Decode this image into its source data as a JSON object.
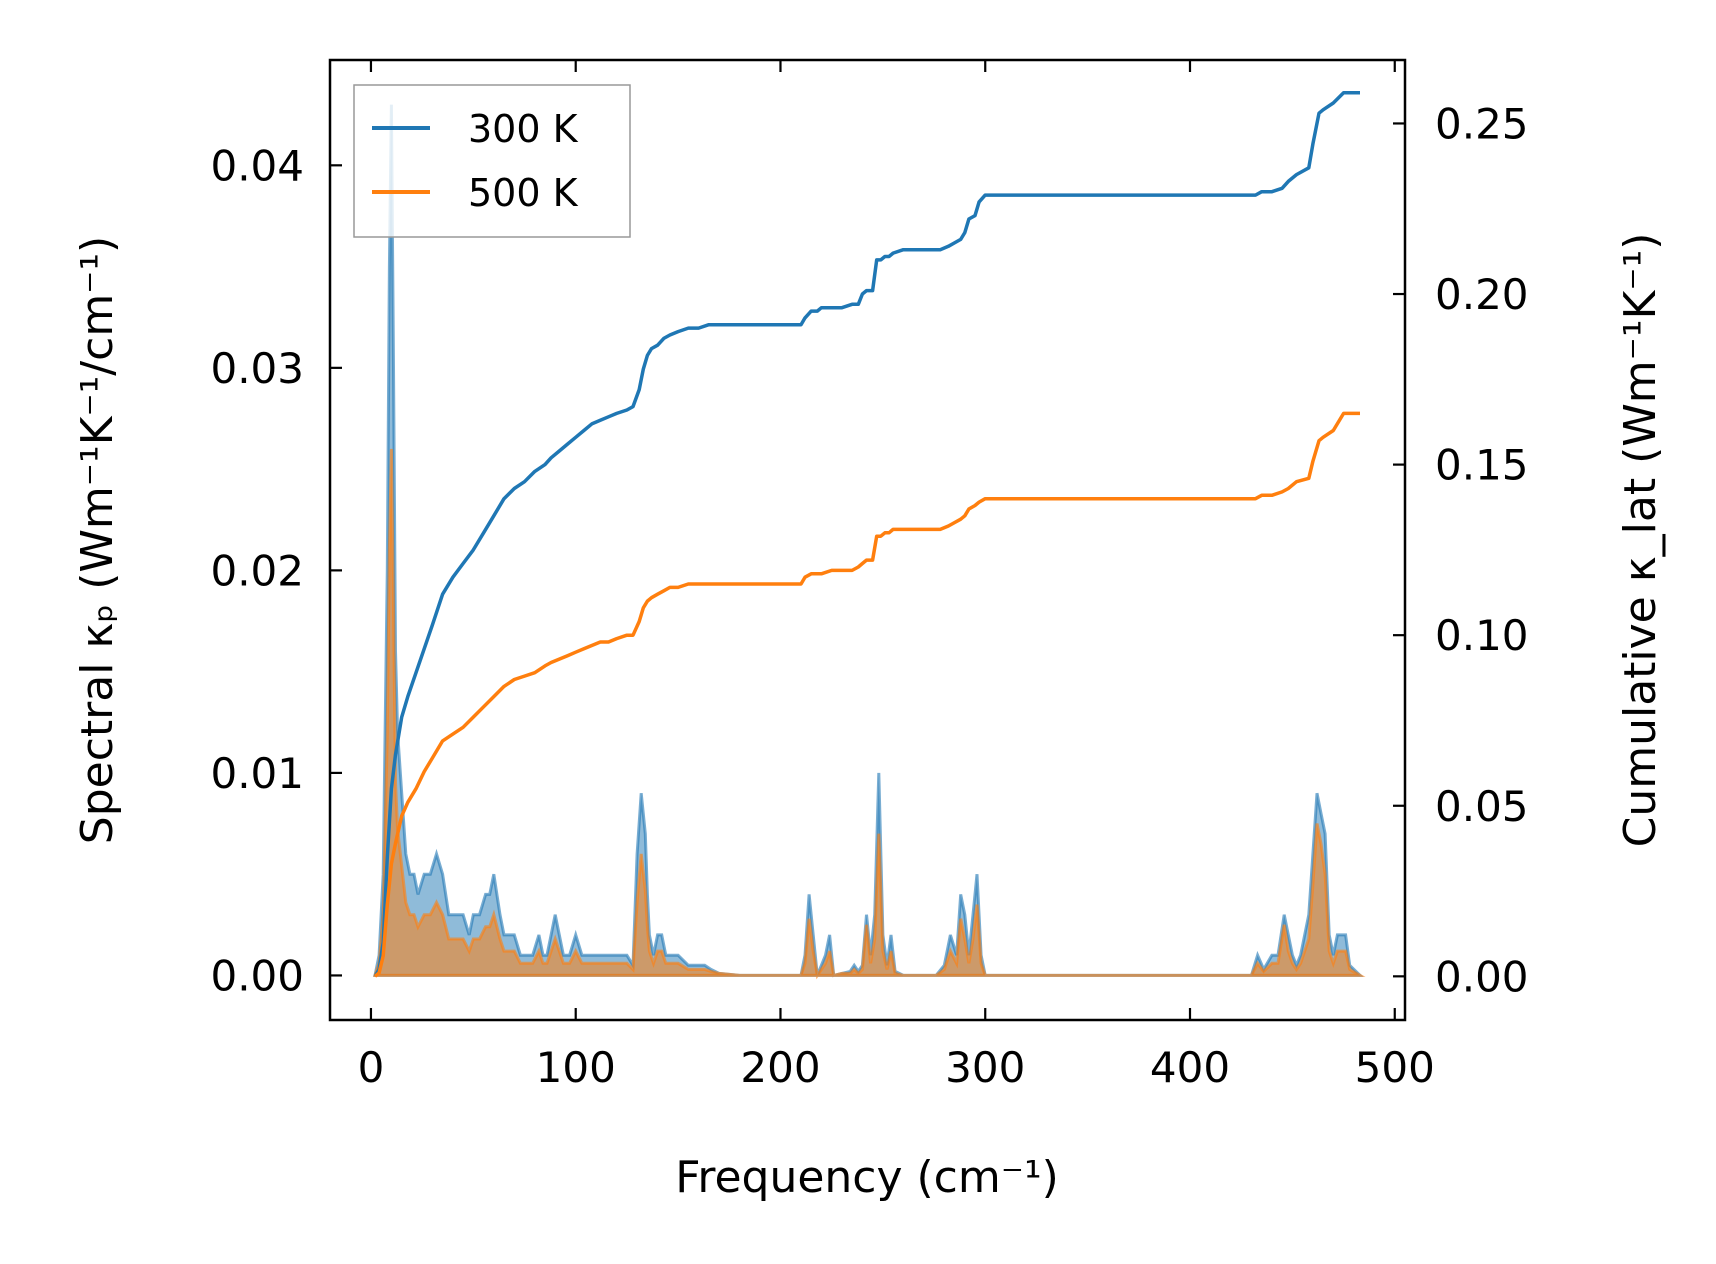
{
  "chart_data": {
    "type": "line",
    "xlabel": "Frequency (cm⁻¹)",
    "ylabel_left": "Spectral κₚ (Wm⁻¹K⁻¹/cm⁻¹)",
    "ylabel_right": "Cumulative κ_lat (Wm⁻¹K⁻¹)",
    "xlim": [
      -20,
      505
    ],
    "ylim_left": [
      -0.0022,
      0.0452
    ],
    "ylim_right": [
      -0.0128,
      0.2686
    ],
    "x_ticks": [
      0,
      100,
      200,
      300,
      400,
      500
    ],
    "x_tick_labels": [
      "0",
      "100",
      "200",
      "300",
      "400",
      "500"
    ],
    "y_left_ticks": [
      0,
      0.01,
      0.02,
      0.03,
      0.04
    ],
    "y_left_tick_labels": [
      "0.00",
      "0.01",
      "0.02",
      "0.03",
      "0.04"
    ],
    "y_right_ticks": [
      0,
      0.05,
      0.1,
      0.15,
      0.2,
      0.25
    ],
    "y_right_tick_labels": [
      "0.00",
      "0.05",
      "0.10",
      "0.15",
      "0.20",
      "0.25"
    ],
    "legend": {
      "position": "top-left",
      "entries": [
        "300 K",
        "500 K"
      ]
    },
    "colors": {
      "300K": "#1f77b4",
      "500K": "#ff7f0e",
      "spectral_300K_fill": "#1f77b4",
      "spectral_500K_fill": "#ff7f0e"
    },
    "series": [
      {
        "name": "300 K",
        "axis": "right",
        "kind": "cumulative",
        "color": "#1f77b4",
        "x": [
          2,
          4,
          6,
          8,
          10,
          12,
          15,
          18,
          22,
          26,
          30,
          35,
          40,
          45,
          50,
          55,
          60,
          65,
          70,
          75,
          80,
          85,
          88,
          92,
          96,
          100,
          104,
          108,
          112,
          116,
          120,
          125,
          128,
          131,
          133,
          135,
          137,
          140,
          143,
          146,
          150,
          155,
          160,
          165,
          170,
          180,
          190,
          200,
          210,
          212,
          215,
          218,
          220,
          225,
          230,
          235,
          238,
          240,
          242,
          245,
          247,
          249,
          251,
          253,
          255,
          260,
          270,
          275,
          278,
          282,
          285,
          288,
          290,
          292,
          295,
          297,
          300,
          310,
          350,
          400,
          432,
          435,
          440,
          445,
          448,
          452,
          458,
          460,
          463,
          465,
          470,
          475,
          483
        ],
        "y": [
          0,
          0.002,
          0.01,
          0.035,
          0.055,
          0.065,
          0.076,
          0.082,
          0.089,
          0.096,
          0.103,
          0.112,
          0.117,
          0.121,
          0.125,
          0.13,
          0.135,
          0.14,
          0.143,
          0.145,
          0.148,
          0.15,
          0.152,
          0.154,
          0.156,
          0.158,
          0.16,
          0.162,
          0.163,
          0.164,
          0.165,
          0.166,
          0.167,
          0.172,
          0.178,
          0.182,
          0.184,
          0.185,
          0.187,
          0.188,
          0.189,
          0.19,
          0.19,
          0.191,
          0.191,
          0.191,
          0.191,
          0.191,
          0.191,
          0.193,
          0.195,
          0.195,
          0.196,
          0.196,
          0.196,
          0.197,
          0.197,
          0.2,
          0.201,
          0.201,
          0.21,
          0.21,
          0.211,
          0.211,
          0.212,
          0.213,
          0.213,
          0.213,
          0.213,
          0.214,
          0.215,
          0.216,
          0.218,
          0.222,
          0.223,
          0.227,
          0.229,
          0.229,
          0.229,
          0.229,
          0.229,
          0.23,
          0.23,
          0.231,
          0.233,
          0.235,
          0.237,
          0.244,
          0.253,
          0.254,
          0.256,
          0.259,
          0.259
        ]
      },
      {
        "name": "500 K",
        "axis": "right",
        "kind": "cumulative",
        "color": "#ff7f0e",
        "x": [
          2,
          4,
          6,
          8,
          10,
          12,
          15,
          18,
          22,
          26,
          30,
          35,
          40,
          45,
          50,
          55,
          60,
          65,
          70,
          75,
          80,
          85,
          88,
          92,
          96,
          100,
          104,
          108,
          112,
          116,
          120,
          125,
          128,
          131,
          133,
          135,
          137,
          140,
          143,
          146,
          150,
          155,
          160,
          165,
          170,
          180,
          190,
          200,
          210,
          212,
          215,
          218,
          220,
          225,
          230,
          235,
          238,
          240,
          242,
          245,
          247,
          249,
          251,
          253,
          255,
          260,
          270,
          275,
          278,
          282,
          285,
          288,
          290,
          292,
          295,
          297,
          300,
          310,
          350,
          400,
          432,
          435,
          440,
          445,
          448,
          452,
          458,
          460,
          463,
          465,
          470,
          475,
          483
        ],
        "y": [
          0,
          0.001,
          0.006,
          0.021,
          0.033,
          0.039,
          0.047,
          0.051,
          0.055,
          0.06,
          0.064,
          0.069,
          0.071,
          0.073,
          0.076,
          0.079,
          0.082,
          0.085,
          0.087,
          0.088,
          0.089,
          0.091,
          0.092,
          0.093,
          0.094,
          0.095,
          0.096,
          0.097,
          0.098,
          0.098,
          0.099,
          0.1,
          0.1,
          0.104,
          0.108,
          0.11,
          0.111,
          0.112,
          0.113,
          0.114,
          0.114,
          0.115,
          0.115,
          0.115,
          0.115,
          0.115,
          0.115,
          0.115,
          0.115,
          0.117,
          0.118,
          0.118,
          0.118,
          0.119,
          0.119,
          0.119,
          0.12,
          0.121,
          0.122,
          0.122,
          0.129,
          0.129,
          0.13,
          0.13,
          0.131,
          0.131,
          0.131,
          0.131,
          0.131,
          0.132,
          0.133,
          0.134,
          0.135,
          0.137,
          0.138,
          0.139,
          0.14,
          0.14,
          0.14,
          0.14,
          0.14,
          0.141,
          0.141,
          0.142,
          0.143,
          0.145,
          0.146,
          0.151,
          0.157,
          0.158,
          0.16,
          0.165,
          0.165
        ]
      },
      {
        "name": "300 K",
        "axis": "left",
        "kind": "spectral",
        "color": "#1f77b4",
        "x": [
          2,
          4,
          6,
          8,
          9,
          10,
          11,
          12,
          13,
          15,
          17,
          19,
          21,
          23,
          26,
          29,
          32,
          35,
          38,
          40,
          42,
          45,
          48,
          50,
          53,
          56,
          58,
          60,
          63,
          65,
          68,
          70,
          73,
          76,
          79,
          82,
          84,
          86,
          88,
          90,
          92,
          94,
          97,
          100,
          103,
          106,
          110,
          115,
          120,
          125,
          128,
          130,
          132,
          134,
          135,
          136,
          138,
          140,
          142,
          144,
          146,
          150,
          155,
          158,
          160,
          163,
          166,
          170,
          180,
          190,
          200,
          208,
          210,
          212,
          214,
          216,
          218,
          220,
          222,
          224,
          226,
          230,
          234,
          236,
          238,
          240,
          242,
          244,
          246,
          248,
          250,
          252,
          254,
          256,
          260,
          270,
          276,
          280,
          283,
          286,
          288,
          290,
          292,
          294,
          296,
          298,
          300,
          304,
          350,
          400,
          430,
          433,
          436,
          440,
          443,
          446,
          448,
          450,
          452,
          454,
          456,
          458,
          460,
          462,
          464,
          466,
          468,
          470,
          472,
          474,
          476,
          478,
          483
        ],
        "y": [
          0,
          0.001,
          0.005,
          0.02,
          0.035,
          0.043,
          0.03,
          0.016,
          0.012,
          0.009,
          0.006,
          0.005,
          0.005,
          0.004,
          0.005,
          0.005,
          0.006,
          0.005,
          0.003,
          0.003,
          0.003,
          0.003,
          0.002,
          0.003,
          0.003,
          0.004,
          0.004,
          0.005,
          0.003,
          0.002,
          0.002,
          0.002,
          0.001,
          0.001,
          0.001,
          0.002,
          0.001,
          0.001,
          0.002,
          0.003,
          0.002,
          0.001,
          0.001,
          0.002,
          0.001,
          0.001,
          0.001,
          0.001,
          0.001,
          0.001,
          0.0005,
          0.006,
          0.009,
          0.007,
          0.004,
          0.002,
          0.001,
          0.002,
          0.002,
          0.001,
          0.001,
          0.001,
          0.0005,
          0.0005,
          0.0005,
          0.0005,
          0.0003,
          0.0001,
          0,
          0,
          0,
          0,
          0,
          0.001,
          0.004,
          0.002,
          0,
          0.0005,
          0.001,
          0.002,
          0,
          0.0001,
          0.0002,
          0.0005,
          0.0002,
          0.0005,
          0.003,
          0.001,
          0.003,
          0.01,
          0.002,
          0.0005,
          0.002,
          0.0002,
          0,
          0,
          0,
          0.0005,
          0.002,
          0.001,
          0.004,
          0.003,
          0.001,
          0.003,
          0.005,
          0.001,
          0,
          0,
          0,
          0,
          0,
          0.001,
          0.0003,
          0.001,
          0.001,
          0.003,
          0.002,
          0.001,
          0.0005,
          0.001,
          0.002,
          0.003,
          0.006,
          0.009,
          0.008,
          0.007,
          0.002,
          0.001,
          0.002,
          0.002,
          0.002,
          0.0005,
          0
        ],
        "x_key": "spectral"
      },
      {
        "name": "500 K",
        "axis": "left",
        "kind": "spectral",
        "color": "#ff7f0e",
        "x": [
          2,
          4,
          6,
          8,
          9,
          10,
          11,
          12,
          13,
          15,
          17,
          19,
          21,
          23,
          26,
          29,
          32,
          35,
          38,
          40,
          42,
          45,
          48,
          50,
          53,
          56,
          58,
          60,
          63,
          65,
          68,
          70,
          73,
          76,
          79,
          82,
          84,
          86,
          88,
          90,
          92,
          94,
          97,
          100,
          103,
          106,
          110,
          115,
          120,
          125,
          128,
          130,
          132,
          134,
          135,
          136,
          138,
          140,
          142,
          144,
          146,
          150,
          155,
          158,
          160,
          163,
          166,
          170,
          180,
          190,
          200,
          208,
          210,
          212,
          214,
          216,
          218,
          220,
          222,
          224,
          226,
          230,
          234,
          236,
          238,
          240,
          242,
          244,
          246,
          248,
          250,
          252,
          254,
          256,
          260,
          270,
          276,
          280,
          283,
          286,
          288,
          290,
          292,
          294,
          296,
          298,
          300,
          304,
          350,
          400,
          430,
          433,
          436,
          440,
          443,
          446,
          448,
          450,
          452,
          454,
          456,
          458,
          460,
          462,
          464,
          466,
          468,
          470,
          472,
          474,
          476,
          478,
          483
        ],
        "y": [
          0,
          0.0006,
          0.003,
          0.012,
          0.021,
          0.026,
          0.018,
          0.0095,
          0.0072,
          0.0054,
          0.0036,
          0.003,
          0.003,
          0.0024,
          0.003,
          0.003,
          0.0036,
          0.003,
          0.0018,
          0.0018,
          0.0018,
          0.0018,
          0.0012,
          0.0018,
          0.0018,
          0.0024,
          0.0024,
          0.003,
          0.0018,
          0.0012,
          0.0012,
          0.0012,
          0.0006,
          0.0006,
          0.0006,
          0.0012,
          0.0006,
          0.0006,
          0.0012,
          0.0018,
          0.0012,
          0.0006,
          0.0006,
          0.0012,
          0.0006,
          0.0006,
          0.0006,
          0.0006,
          0.0006,
          0.0006,
          0.0003,
          0.0036,
          0.006,
          0.0042,
          0.0024,
          0.0012,
          0.0006,
          0.0012,
          0.0012,
          0.0006,
          0.0006,
          0.0006,
          0.0003,
          0.0003,
          0.0003,
          0.0003,
          0.0002,
          0.0001,
          0,
          0,
          0,
          0,
          0,
          0.0006,
          0.0028,
          0.0012,
          0,
          0.0003,
          0.0006,
          0.0012,
          0,
          0.0001,
          0.0001,
          0.0003,
          0.0001,
          0.0003,
          0.0025,
          0.0006,
          0.0018,
          0.007,
          0.0012,
          0.0003,
          0.0012,
          0.0001,
          0,
          0,
          0,
          0.0003,
          0.0012,
          0.0006,
          0.0028,
          0.0018,
          0.0006,
          0.0018,
          0.0035,
          0.0006,
          0,
          0,
          0,
          0,
          0,
          0.0006,
          0.0002,
          0.0006,
          0.0006,
          0.0025,
          0.0012,
          0.0006,
          0.0003,
          0.0006,
          0.0012,
          0.0018,
          0.0045,
          0.0075,
          0.0065,
          0.005,
          0.0012,
          0.0006,
          0.0012,
          0.0012,
          0.0012,
          0.0003,
          0
        ]
      }
    ]
  }
}
